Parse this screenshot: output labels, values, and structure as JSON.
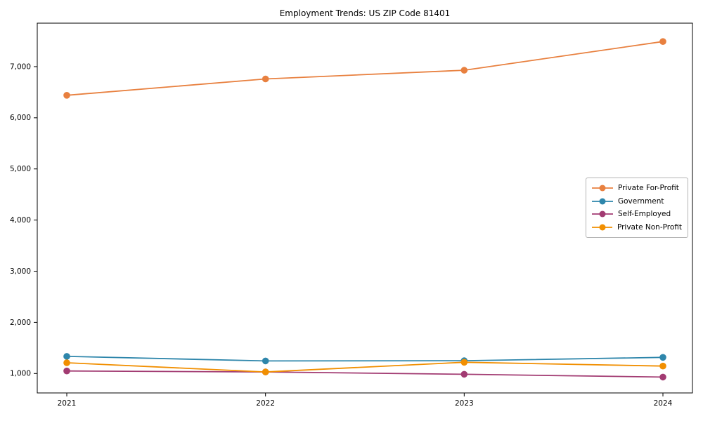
{
  "chart_data": {
    "type": "line",
    "title": "Employment Trends: US ZIP Code 81401",
    "categories": [
      "2021",
      "2022",
      "2023",
      "2024"
    ],
    "series": [
      {
        "name": "Private For-Profit",
        "color": "#E8803F",
        "values": [
          6440,
          6760,
          6930,
          7490
        ]
      },
      {
        "name": "Government",
        "color": "#2E86AB",
        "values": [
          1335,
          1245,
          1250,
          1315
        ]
      },
      {
        "name": "Self-Employed",
        "color": "#A23B72",
        "values": [
          1050,
          1030,
          985,
          930
        ]
      },
      {
        "name": "Private Non-Profit",
        "color": "#F18F01",
        "values": [
          1210,
          1030,
          1220,
          1145
        ]
      }
    ],
    "yticks": [
      {
        "value": 1000,
        "label": "1,000"
      },
      {
        "value": 2000,
        "label": "2,000"
      },
      {
        "value": 3000,
        "label": "3,000"
      },
      {
        "value": 4000,
        "label": "4,000"
      },
      {
        "value": 5000,
        "label": "5,000"
      },
      {
        "value": 6000,
        "label": "6,000"
      },
      {
        "value": 7000,
        "label": "7,000"
      }
    ],
    "ylim": [
      620,
      7850
    ],
    "grid": false,
    "legend_position": "center-right",
    "axis_color": "#000000",
    "marker": "circle",
    "xlabel": "",
    "ylabel": ""
  }
}
